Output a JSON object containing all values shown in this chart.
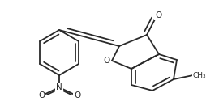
{
  "bg_color": "#ffffff",
  "line_color": "#2a2a2a",
  "line_width": 1.3,
  "figsize": [
    2.7,
    1.31
  ],
  "dpi": 100,
  "xlim": [
    0,
    270
  ],
  "ylim": [
    0,
    131
  ]
}
